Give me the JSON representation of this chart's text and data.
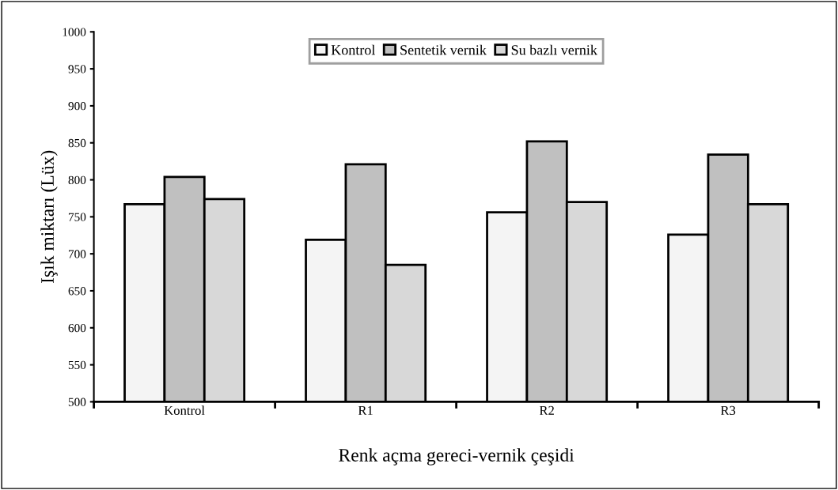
{
  "chart_data": {
    "type": "bar",
    "xlabel": "Renk açma gereci-vernik çeşidi",
    "ylabel": "Işık miktarı (Lüx)",
    "categories": [
      "Kontrol",
      "R1",
      "R2",
      "R3"
    ],
    "series": [
      {
        "name": "Kontrol",
        "color": "#f4f4f4",
        "values": [
          767,
          719,
          756,
          726
        ]
      },
      {
        "name": "Sentetik vernik",
        "color": "#c0c0c0",
        "values": [
          804,
          821,
          852,
          834
        ]
      },
      {
        "name": "Su bazlı vernik",
        "color": "#d8d8d8",
        "values": [
          774,
          685,
          770,
          767
        ]
      }
    ],
    "ylim": [
      500,
      1000
    ],
    "yticks": [
      500,
      550,
      600,
      650,
      700,
      750,
      800,
      850,
      900,
      950,
      1000
    ],
    "grid": false,
    "legend": "top"
  }
}
